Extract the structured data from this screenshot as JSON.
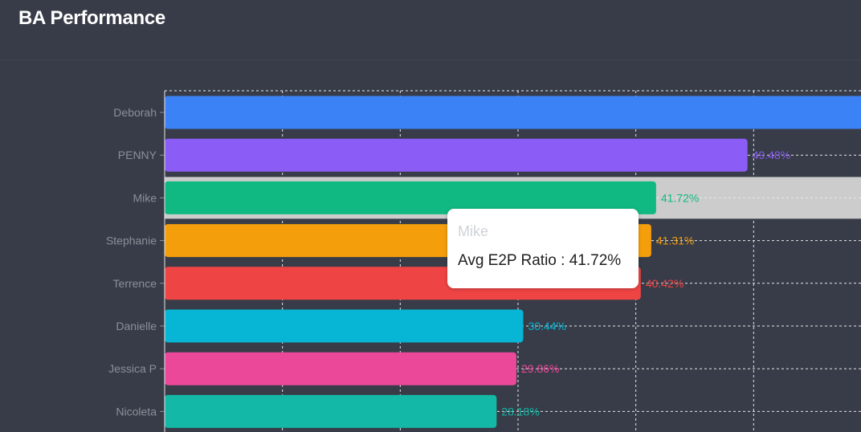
{
  "header": {
    "title": "BA Performance"
  },
  "chart_data": {
    "type": "bar",
    "orientation": "horizontal",
    "categories": [
      "Deborah",
      "PENNY",
      "Mike",
      "Stephanie",
      "Terrence",
      "Danielle",
      "Jessica P",
      "Nicoleta"
    ],
    "values": [
      62.5,
      49.48,
      41.72,
      41.31,
      40.42,
      30.44,
      29.86,
      28.18
    ],
    "value_labels": [
      "",
      "49.48%",
      "41.72%",
      "41.31%",
      "40.42%",
      "30.44%",
      "29.86%",
      "28.18%"
    ],
    "colors": [
      "#3b82f6",
      "#8b5cf6",
      "#10b981",
      "#f59e0b",
      "#ef4444",
      "#06b6d4",
      "#ec4899",
      "#14b8a6"
    ],
    "xlim": [
      0,
      60
    ],
    "grid": true,
    "highlighted": "Mike",
    "highlight_color": "#cccccc",
    "title": "",
    "xlabel": "",
    "ylabel": ""
  },
  "tooltip": {
    "name": "Mike",
    "metric_label": "Avg E2P Ratio : 41.72%"
  }
}
